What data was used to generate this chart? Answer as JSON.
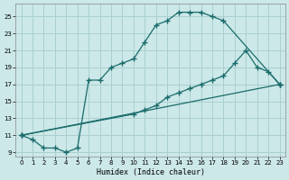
{
  "xlabel": "Humidex (Indice chaleur)",
  "bg_color": "#cce8e8",
  "grid_color": "#aad0d0",
  "line_color": "#1a6b6b",
  "line1_x": [
    0,
    1,
    2,
    3,
    4,
    5,
    6,
    7,
    8,
    9,
    10,
    11,
    12,
    13,
    14,
    15,
    16,
    17,
    18,
    23
  ],
  "line1_y": [
    11,
    10.5,
    9.5,
    9.5,
    9.0,
    9.5,
    17.5,
    17.5,
    19.0,
    19.5,
    20.0,
    22.0,
    24.0,
    24.5,
    25.5,
    25.5,
    25.5,
    25.0,
    24.5,
    17.0
  ],
  "line2_x": [
    0,
    10,
    11,
    12,
    13,
    14,
    15,
    16,
    17,
    18,
    19,
    20,
    21,
    22,
    23
  ],
  "line2_y": [
    11,
    13.5,
    14.0,
    14.5,
    15.5,
    16.0,
    16.5,
    17.0,
    17.5,
    18.0,
    19.5,
    21.0,
    19.0,
    18.5,
    17.0
  ],
  "line3_x": [
    0,
    23
  ],
  "line3_y": [
    11,
    17
  ],
  "xlim": [
    -0.5,
    23.5
  ],
  "ylim": [
    8.5,
    26.5
  ],
  "xticks": [
    0,
    1,
    2,
    3,
    4,
    5,
    6,
    7,
    8,
    9,
    10,
    11,
    12,
    13,
    14,
    15,
    16,
    17,
    18,
    19,
    20,
    21,
    22,
    23
  ],
  "yticks": [
    9,
    11,
    13,
    15,
    17,
    19,
    21,
    23,
    25
  ]
}
